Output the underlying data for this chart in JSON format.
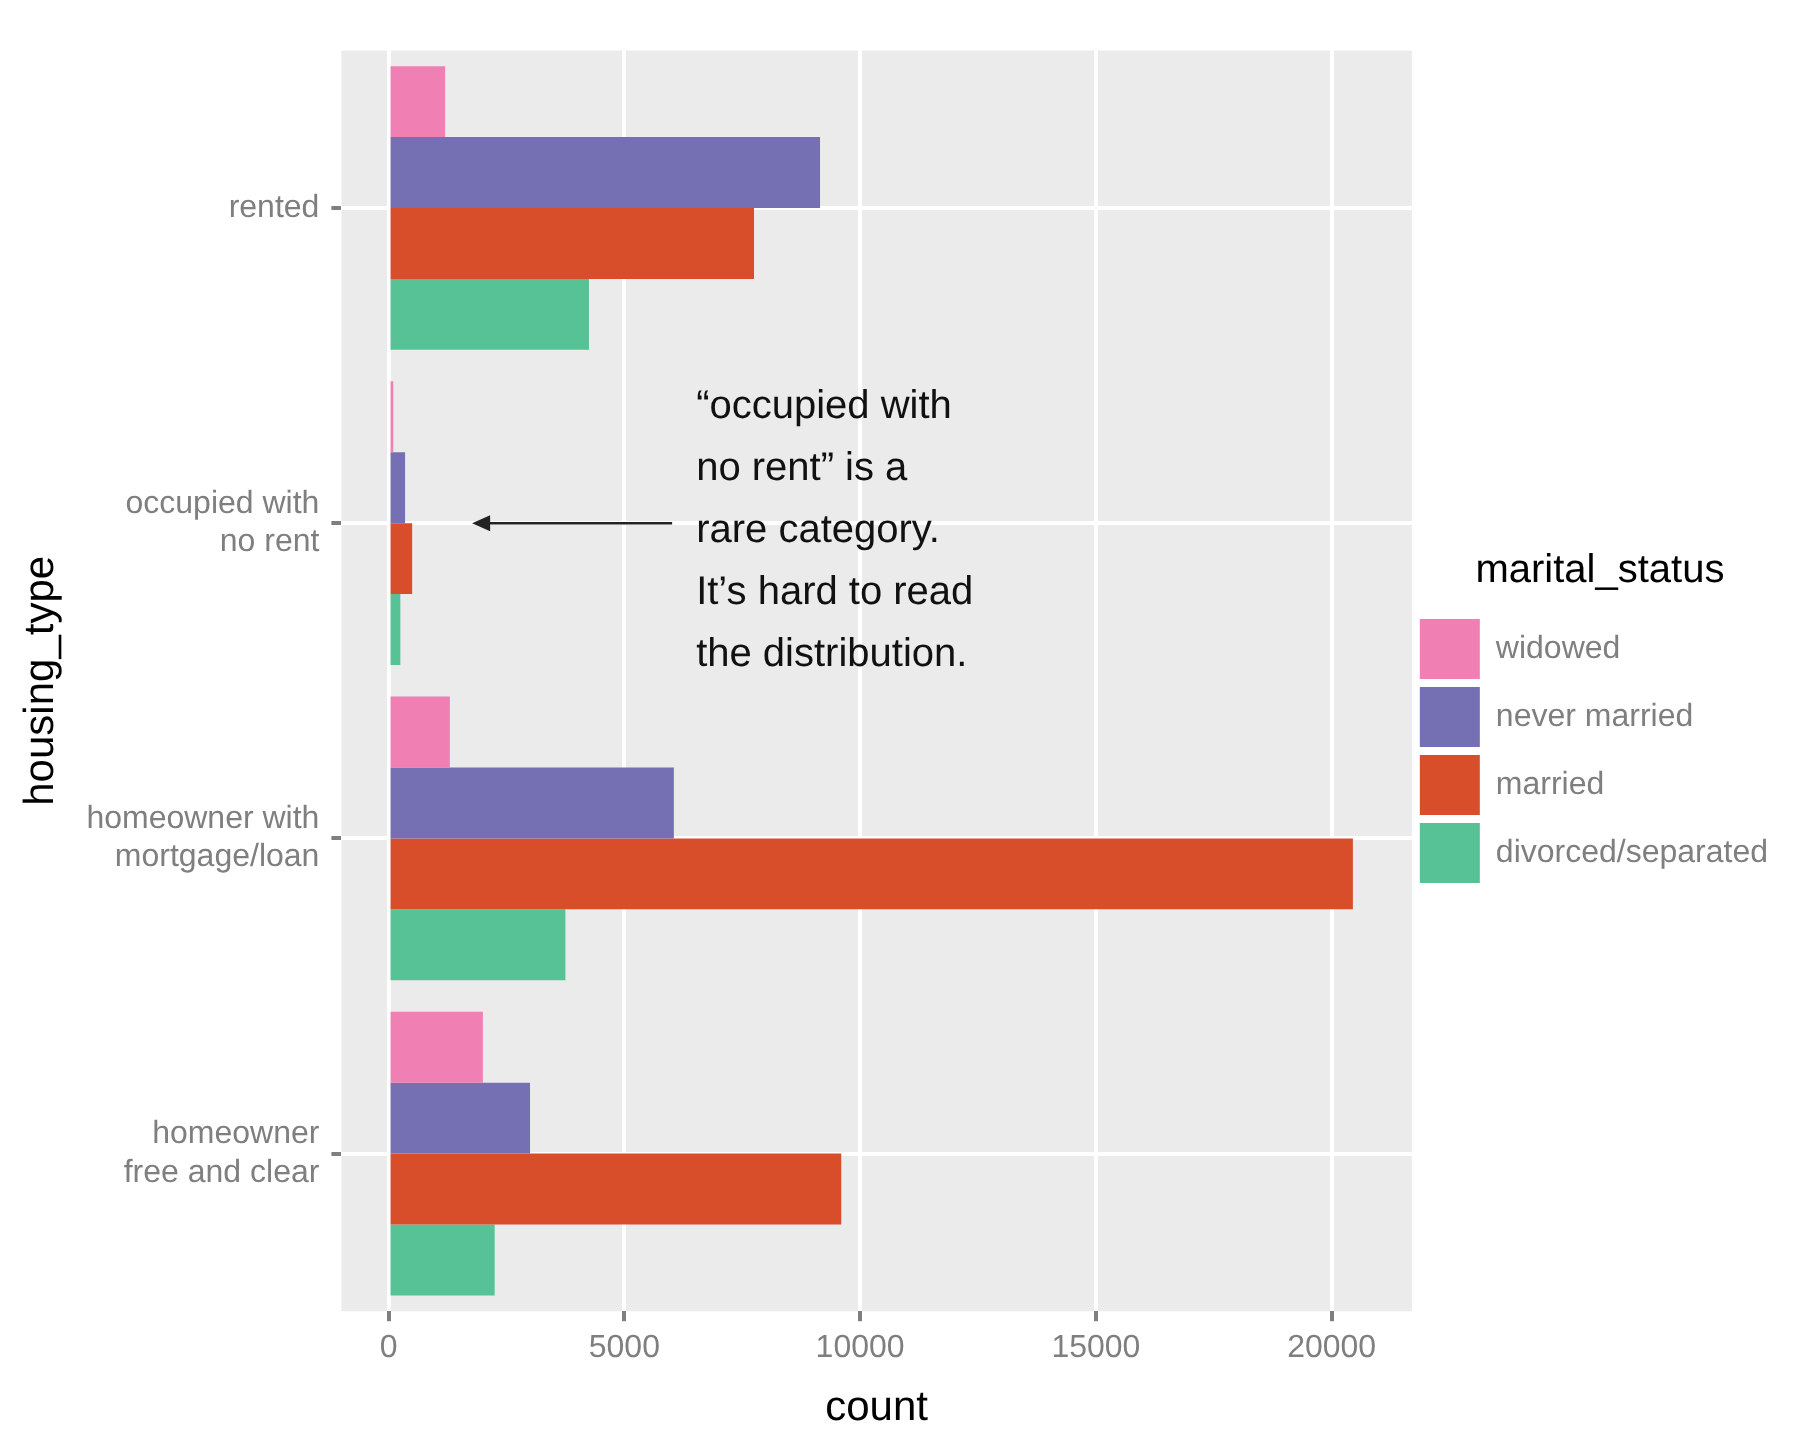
{
  "chart_data": {
    "type": "bar",
    "orientation": "horizontal",
    "xlabel": "count",
    "ylabel": "housing_type",
    "legend_title": "marital_status",
    "legend": "right",
    "grid": true,
    "categories": [
      "rented",
      "occupied with\nno rent",
      "homeowner with\nmortgage/loan",
      "homeowner\nfree and clear"
    ],
    "series": [
      {
        "name": "widowed",
        "color": "#f07fb4",
        "values": [
          1200,
          100,
          1300,
          2000
        ]
      },
      {
        "name": "never married",
        "color": "#7570b3",
        "values": [
          9150,
          350,
          6050,
          3000
        ]
      },
      {
        "name": "married",
        "color": "#d94e2a",
        "values": [
          7750,
          500,
          20450,
          9600
        ]
      },
      {
        "name": "divorced/separated",
        "color": "#57c295",
        "values": [
          4250,
          250,
          3750,
          2250
        ]
      }
    ],
    "xlim": [
      -1000,
      21700
    ],
    "xticks": [
      0,
      5000,
      10000,
      15000,
      20000
    ],
    "annotations": [
      "“occupied with\nno rent” is a\nrare category.\nIt’s hard to read\nthe distribution."
    ]
  }
}
